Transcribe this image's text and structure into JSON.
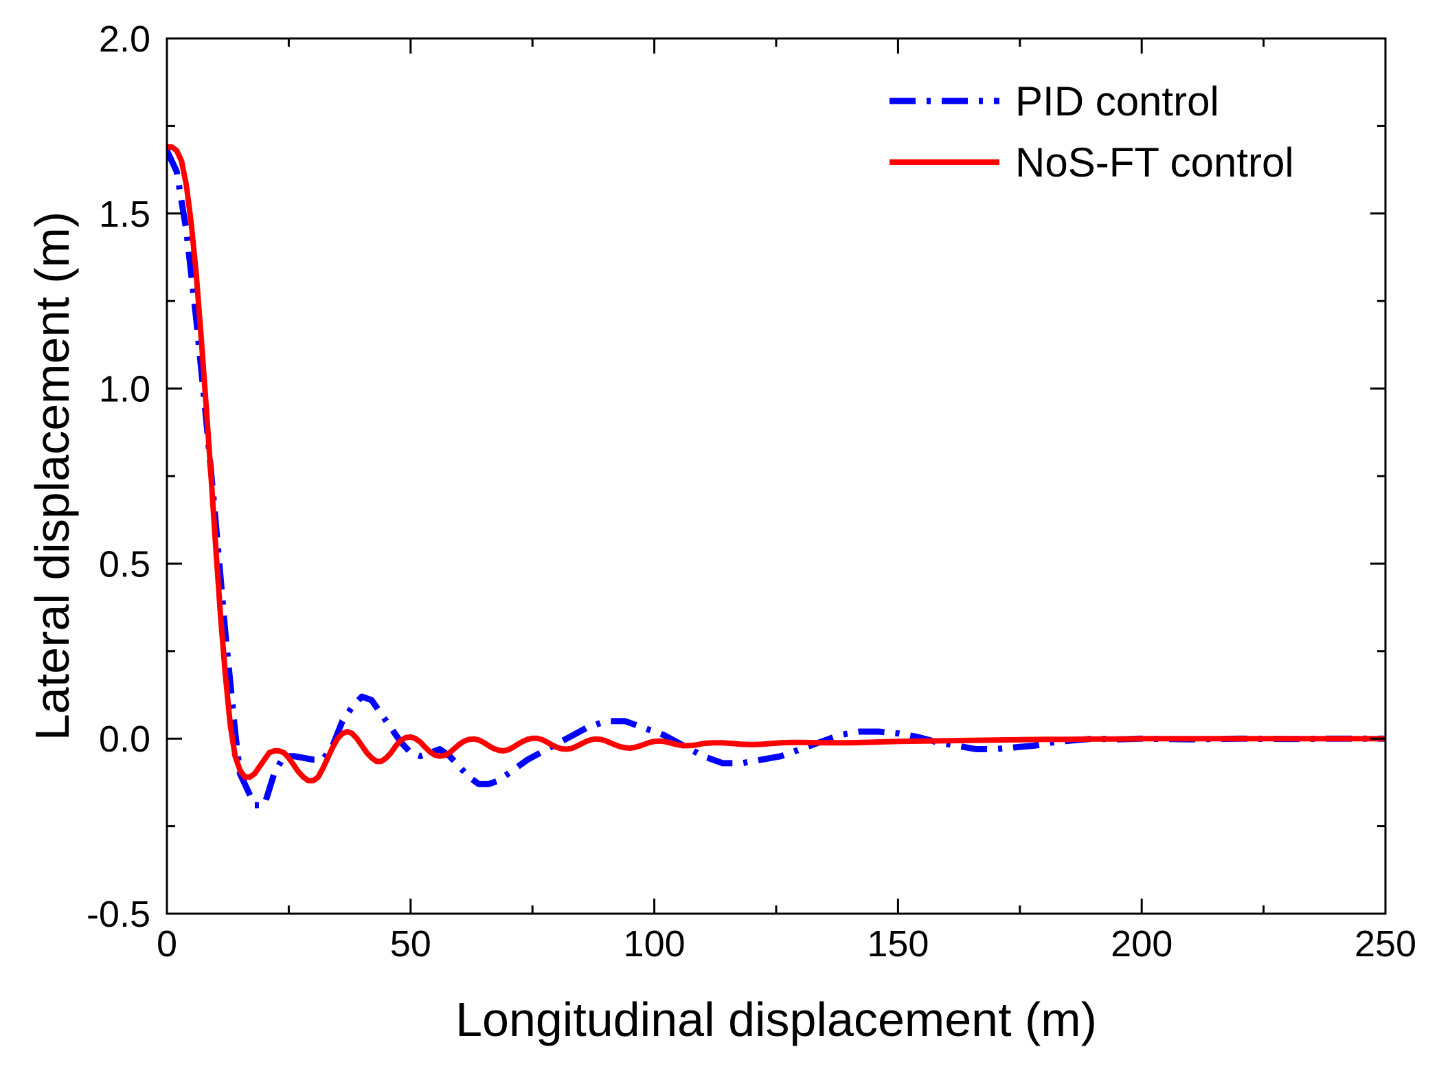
{
  "chart_data": {
    "type": "line",
    "title": "",
    "xlabel": "Longitudinal displacement (m)",
    "ylabel": "Lateral displacement (m)",
    "xlim": [
      0,
      250
    ],
    "ylim": [
      -0.5,
      2.0
    ],
    "xticks": [
      0,
      50,
      100,
      150,
      200,
      250
    ],
    "xtick_labels": [
      "0",
      "50",
      "100",
      "150",
      "200",
      "250"
    ],
    "yticks": [
      -0.5,
      0.0,
      0.5,
      1.0,
      1.5,
      2.0
    ],
    "ytick_labels": [
      "-0.5",
      "0.0",
      "0.5",
      "1.0",
      "1.5",
      "2.0"
    ],
    "grid": false,
    "legend_position": "top-right",
    "series": [
      {
        "name": "PID control",
        "color": "#0000ff",
        "style": "dash-dot",
        "x": [
          0,
          2,
          4,
          6,
          8,
          10,
          12,
          14,
          15,
          16,
          18,
          20,
          22,
          24,
          26,
          28,
          30,
          32,
          34,
          36,
          38,
          40,
          42,
          44,
          46,
          48,
          50,
          52,
          54,
          56,
          58,
          60,
          62,
          64,
          66,
          68,
          70,
          74,
          78,
          82,
          86,
          90,
          94,
          98,
          102,
          106,
          110,
          114,
          118,
          122,
          126,
          130,
          134,
          138,
          142,
          146,
          150,
          154,
          158,
          162,
          166,
          170,
          174,
          178,
          182,
          186,
          190,
          195,
          200,
          210,
          220,
          230,
          240,
          250
        ],
        "y": [
          1.68,
          1.62,
          1.45,
          1.2,
          0.92,
          0.62,
          0.3,
          0.02,
          -0.1,
          -0.13,
          -0.19,
          -0.19,
          -0.1,
          -0.05,
          -0.05,
          -0.055,
          -0.06,
          -0.06,
          -0.02,
          0.05,
          0.09,
          0.12,
          0.11,
          0.07,
          0.03,
          -0.01,
          -0.04,
          -0.05,
          -0.04,
          -0.03,
          -0.05,
          -0.08,
          -0.11,
          -0.13,
          -0.13,
          -0.12,
          -0.1,
          -0.06,
          -0.03,
          0.0,
          0.03,
          0.05,
          0.05,
          0.03,
          0.01,
          -0.02,
          -0.05,
          -0.07,
          -0.07,
          -0.06,
          -0.05,
          -0.03,
          -0.01,
          0.01,
          0.02,
          0.02,
          0.015,
          0.005,
          -0.01,
          -0.02,
          -0.03,
          -0.03,
          -0.025,
          -0.02,
          -0.01,
          -0.005,
          0.0,
          -0.002,
          0.0,
          -0.002,
          0.0,
          -0.001,
          0.0,
          0.0
        ]
      },
      {
        "name": "NoS-FT control",
        "color": "#ff0000",
        "style": "solid",
        "x": [
          0,
          1,
          2,
          3,
          4,
          5,
          6,
          7,
          8,
          9,
          10,
          11,
          12,
          13,
          14,
          15,
          16,
          17,
          18,
          19,
          20,
          21,
          22,
          23,
          24,
          25,
          26,
          27,
          28,
          29,
          30,
          31,
          32,
          33,
          34,
          35,
          36,
          37,
          38,
          39,
          40,
          41,
          42,
          43,
          44,
          45,
          46,
          47,
          48,
          49,
          50,
          51,
          52,
          53,
          54,
          55,
          56,
          57,
          58,
          59,
          60,
          61,
          62,
          63,
          64,
          65,
          66,
          67,
          68,
          69,
          70,
          71,
          72,
          73,
          74,
          75,
          76,
          77,
          78,
          79,
          80,
          81,
          82,
          83,
          84,
          85,
          86,
          87,
          88,
          89,
          90,
          91,
          92,
          93,
          94,
          95,
          96,
          97,
          98,
          99,
          100,
          101,
          102,
          103,
          104,
          105,
          106,
          107,
          108,
          109,
          110,
          112,
          114,
          116,
          118,
          120,
          122,
          124,
          126,
          128,
          130,
          135,
          140,
          145,
          150,
          155,
          160,
          165,
          170,
          175,
          180,
          185,
          190,
          195,
          200,
          210,
          220,
          230,
          240,
          250
        ],
        "y": [
          1.69,
          1.69,
          1.68,
          1.65,
          1.58,
          1.47,
          1.33,
          1.15,
          0.96,
          0.76,
          0.55,
          0.35,
          0.18,
          0.04,
          -0.05,
          -0.09,
          -0.11,
          -0.11,
          -0.1,
          -0.08,
          -0.06,
          -0.04,
          -0.035,
          -0.035,
          -0.04,
          -0.055,
          -0.075,
          -0.095,
          -0.11,
          -0.12,
          -0.12,
          -0.11,
          -0.085,
          -0.055,
          -0.025,
          0.0,
          0.015,
          0.02,
          0.015,
          0.0,
          -0.02,
          -0.04,
          -0.055,
          -0.065,
          -0.065,
          -0.055,
          -0.04,
          -0.02,
          -0.005,
          0.003,
          0.005,
          0.0,
          -0.01,
          -0.025,
          -0.038,
          -0.047,
          -0.05,
          -0.048,
          -0.04,
          -0.028,
          -0.016,
          -0.007,
          -0.002,
          -0.001,
          -0.004,
          -0.011,
          -0.02,
          -0.028,
          -0.033,
          -0.035,
          -0.032,
          -0.025,
          -0.016,
          -0.008,
          -0.002,
          0.001,
          0.001,
          -0.003,
          -0.01,
          -0.018,
          -0.025,
          -0.029,
          -0.03,
          -0.028,
          -0.022,
          -0.015,
          -0.008,
          -0.003,
          -0.001,
          -0.002,
          -0.006,
          -0.012,
          -0.018,
          -0.023,
          -0.026,
          -0.027,
          -0.025,
          -0.021,
          -0.016,
          -0.011,
          -0.008,
          -0.007,
          -0.008,
          -0.011,
          -0.015,
          -0.018,
          -0.02,
          -0.02,
          -0.019,
          -0.017,
          -0.014,
          -0.012,
          -0.012,
          -0.014,
          -0.016,
          -0.017,
          -0.016,
          -0.014,
          -0.012,
          -0.011,
          -0.011,
          -0.012,
          -0.012,
          -0.01,
          -0.008,
          -0.007,
          -0.006,
          -0.005,
          -0.004,
          -0.003,
          -0.002,
          -0.002,
          -0.001,
          -0.001,
          0.0,
          0.0,
          0.0,
          0.0,
          0.0,
          0.0
        ]
      }
    ]
  }
}
